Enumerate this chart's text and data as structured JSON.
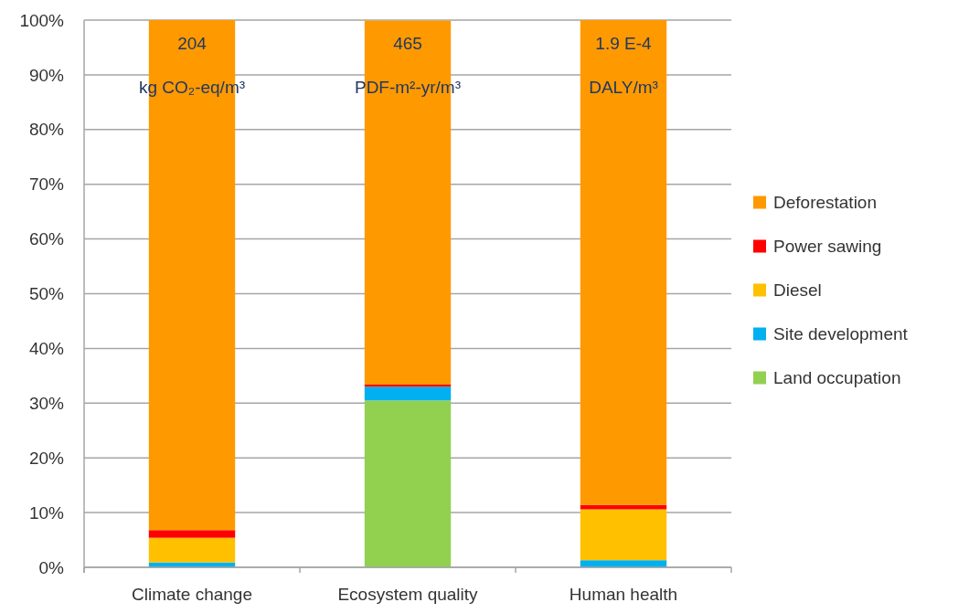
{
  "chart_data": {
    "type": "bar",
    "stacked": true,
    "categories": [
      "Climate change",
      "Ecosystem quality",
      "Human health"
    ],
    "series": [
      {
        "name": "Land occupation",
        "color": "#92d050",
        "values": [
          0,
          30.5,
          0
        ]
      },
      {
        "name": "Site development",
        "color": "#00b0f0",
        "values": [
          0.9,
          2.5,
          1.3
        ]
      },
      {
        "name": "Diesel",
        "color": "#ffc000",
        "values": [
          4.5,
          null,
          9.3
        ]
      },
      {
        "name": "Power sawing",
        "color": "#ff0000",
        "values": [
          1.4,
          0.4,
          0.8
        ]
      },
      {
        "name": "Deforestation",
        "color": "#ff9900",
        "values": [
          93.2,
          66.5,
          88.6
        ]
      }
    ],
    "ylim": [
      0,
      100
    ],
    "yticks": [
      {
        "value": 0,
        "label": "0%"
      },
      {
        "value": 10,
        "label": "10%"
      },
      {
        "value": 20,
        "label": "20%"
      },
      {
        "value": 30,
        "label": "30%"
      },
      {
        "value": 40,
        "label": "40%"
      },
      {
        "value": 50,
        "label": "50%"
      },
      {
        "value": 60,
        "label": "60%"
      },
      {
        "value": 70,
        "label": "70%"
      },
      {
        "value": 80,
        "label": "80%"
      },
      {
        "value": 90,
        "label": "90%"
      },
      {
        "value": 100,
        "label": "100%"
      }
    ],
    "grid": "y",
    "legend": "right",
    "annotations": [
      "204",
      "kg CO₂-eq/m³",
      "465",
      "PDF-m²-yr/m³",
      "1.9 E-4",
      "DALY/m³"
    ]
  }
}
